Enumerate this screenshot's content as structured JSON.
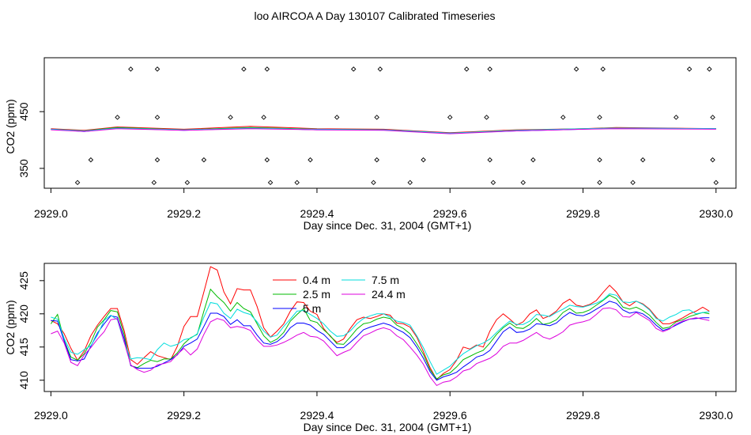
{
  "figure": {
    "title": "loo AIRCOA A  Day 130107  Calibrated Timeseries"
  },
  "chart_data": [
    {
      "type": "line",
      "panel": "top",
      "xlabel": "Day since Dec. 31, 2004 (GMT+1)",
      "ylabel": "CO2 (ppm)",
      "xlim": [
        2928.99,
        2930.03
      ],
      "ylim": [
        315,
        545
      ],
      "x_ticks": [
        {
          "v": 2929.0,
          "label": "2929.0"
        },
        {
          "v": 2929.2,
          "label": "2929.2"
        },
        {
          "v": 2929.4,
          "label": "2929.4"
        },
        {
          "v": 2929.6,
          "label": "2929.6"
        },
        {
          "v": 2929.8,
          "label": "2929.8"
        },
        {
          "v": 2930.0,
          "label": "2930.0"
        }
      ],
      "y_ticks": [
        {
          "v": 350,
          "label": "350"
        },
        {
          "v": 450,
          "label": "450"
        }
      ],
      "series": [
        {
          "color": "#ff0000",
          "x": [
            2929.0,
            2929.05,
            2929.1,
            2929.2,
            2929.3,
            2929.4,
            2929.5,
            2929.6,
            2929.7,
            2929.8,
            2929.85,
            2930.0
          ],
          "values": [
            420,
            417,
            423,
            419,
            424,
            420,
            419,
            413,
            418,
            420,
            422,
            420
          ]
        },
        {
          "color": "#00bb00",
          "x": [
            2929.0,
            2929.05,
            2929.1,
            2929.2,
            2929.3,
            2929.4,
            2929.5,
            2929.6,
            2929.7,
            2929.8,
            2929.85,
            2930.0
          ],
          "values": [
            419,
            416,
            422,
            418,
            422,
            419,
            418,
            412,
            417,
            420,
            421,
            420
          ]
        },
        {
          "color": "#0000ff",
          "x": [
            2929.0,
            2929.05,
            2929.1,
            2929.2,
            2929.3,
            2929.4,
            2929.5,
            2929.6,
            2929.7,
            2929.8,
            2929.85,
            2930.0
          ],
          "values": [
            419,
            415,
            421,
            417,
            421,
            418,
            418,
            412,
            416,
            419,
            421,
            420
          ]
        },
        {
          "color": "#00dddd",
          "x": [
            2929.0,
            2929.05,
            2929.1,
            2929.2,
            2929.3,
            2929.4,
            2929.5,
            2929.6,
            2929.7,
            2929.8,
            2929.85,
            2930.0
          ],
          "values": [
            419,
            416,
            421,
            418,
            421,
            419,
            418,
            412,
            417,
            420,
            421,
            420
          ]
        },
        {
          "color": "#dd00dd",
          "x": [
            2929.0,
            2929.05,
            2929.1,
            2929.2,
            2929.3,
            2929.4,
            2929.5,
            2929.6,
            2929.7,
            2929.8,
            2929.85,
            2930.0
          ],
          "values": [
            418,
            415,
            420,
            417,
            420,
            418,
            417,
            411,
            416,
            419,
            420,
            419
          ]
        }
      ],
      "markers": {
        "type": "scatter",
        "x": [
          2929.04,
          2929.06,
          2929.1,
          2929.12,
          2929.155,
          2929.16,
          2929.16,
          2929.16,
          2929.205,
          2929.23,
          2929.27,
          2929.29,
          2929.32,
          2929.325,
          2929.325,
          2929.33,
          2929.37,
          2929.39,
          2929.43,
          2929.455,
          2929.485,
          2929.49,
          2929.49,
          2929.495,
          2929.54,
          2929.56,
          2929.6,
          2929.625,
          2929.655,
          2929.66,
          2929.66,
          2929.665,
          2929.71,
          2929.725,
          2929.77,
          2929.79,
          2929.825,
          2929.825,
          2929.825,
          2929.83,
          2929.875,
          2929.89,
          2929.94,
          2929.96,
          2929.99,
          2929.995,
          2929.995,
          2930.0
        ],
        "y": [
          325,
          365,
          440,
          525,
          325,
          365,
          440,
          525,
          325,
          365,
          440,
          525,
          440,
          525,
          365,
          325,
          325,
          365,
          440,
          525,
          325,
          365,
          440,
          525,
          325,
          365,
          440,
          525,
          440,
          525,
          365,
          325,
          325,
          365,
          440,
          525,
          325,
          365,
          440,
          525,
          325,
          365,
          440,
          525,
          525,
          440,
          365,
          325
        ]
      }
    },
    {
      "type": "line",
      "panel": "bottom",
      "xlabel": "Day since Dec. 31, 2004 (GMT+1)",
      "ylabel": "CO2 (ppm)",
      "xlim": [
        2928.99,
        2930.03
      ],
      "ylim": [
        408.3,
        427.6
      ],
      "x_ticks": [
        {
          "v": 2929.0,
          "label": "2929.0"
        },
        {
          "v": 2929.2,
          "label": "2929.2"
        },
        {
          "v": 2929.4,
          "label": "2929.4"
        },
        {
          "v": 2929.6,
          "label": "2929.6"
        },
        {
          "v": 2929.8,
          "label": "2929.8"
        },
        {
          "v": 2930.0,
          "label": "2930.0"
        }
      ],
      "y_ticks": [
        {
          "v": 410,
          "label": "410"
        },
        {
          "v": 415,
          "label": "415"
        },
        {
          "v": 420,
          "label": "420"
        },
        {
          "v": 425,
          "label": "425"
        }
      ],
      "legend": {
        "position": "top-center",
        "entries": [
          {
            "label": "0.4 m",
            "color": "#ff0000"
          },
          {
            "label": "2.5 m",
            "color": "#00bb00"
          },
          {
            "label": "5 m",
            "color": "#0000ff"
          },
          {
            "label": "7.5 m",
            "color": "#00dddd"
          },
          {
            "label": "24.4 m",
            "color": "#dd00dd"
          }
        ]
      },
      "x": [
        2929.0,
        2929.01,
        2929.02,
        2929.03,
        2929.04,
        2929.05,
        2929.06,
        2929.07,
        2929.08,
        2929.09,
        2929.1,
        2929.11,
        2929.12,
        2929.13,
        2929.14,
        2929.15,
        2929.16,
        2929.17,
        2929.18,
        2929.19,
        2929.2,
        2929.21,
        2929.22,
        2929.23,
        2929.24,
        2929.25,
        2929.26,
        2929.27,
        2929.28,
        2929.29,
        2929.3,
        2929.31,
        2929.32,
        2929.33,
        2929.34,
        2929.35,
        2929.36,
        2929.37,
        2929.38,
        2929.39,
        2929.4,
        2929.41,
        2929.42,
        2929.43,
        2929.44,
        2929.45,
        2929.46,
        2929.47,
        2929.48,
        2929.49,
        2929.5,
        2929.51,
        2929.52,
        2929.53,
        2929.54,
        2929.55,
        2929.56,
        2929.57,
        2929.58,
        2929.59,
        2929.6,
        2929.61,
        2929.62,
        2929.63,
        2929.64,
        2929.65,
        2929.66,
        2929.67,
        2929.68,
        2929.69,
        2929.7,
        2929.71,
        2929.72,
        2929.73,
        2929.74,
        2929.75,
        2929.76,
        2929.77,
        2929.78,
        2929.79,
        2929.8,
        2929.81,
        2929.82,
        2929.83,
        2929.84,
        2929.85,
        2929.86,
        2929.87,
        2929.88,
        2929.89,
        2929.9,
        2929.91,
        2929.92,
        2929.93,
        2929.94,
        2929.95,
        2929.96,
        2929.97,
        2929.98,
        2929.99
      ],
      "series": [
        {
          "name": "0.4 m",
          "color": "#ff0000",
          "values": [
            419.0,
            418.5,
            417.0,
            414.8,
            413.0,
            414.4,
            416.7,
            418.3,
            419.6,
            420.8,
            420.8,
            417.5,
            413.1,
            412.4,
            413.4,
            414.3,
            413.7,
            413.4,
            413.1,
            415.1,
            418.1,
            419.6,
            419.6,
            423.3,
            427.1,
            426.6,
            423.3,
            421.5,
            423.8,
            423.6,
            423.6,
            421.1,
            417.9,
            416.5,
            417.4,
            418.5,
            420.4,
            421.8,
            421.7,
            420.4,
            419.9,
            417.8,
            416.6,
            415.7,
            416.2,
            417.8,
            419.1,
            419.5,
            419.3,
            419.6,
            420.0,
            419.8,
            418.6,
            418.5,
            418.0,
            416.5,
            414.3,
            411.9,
            410.1,
            411.0,
            411.6,
            413.0,
            415.0,
            414.7,
            415.3,
            415.0,
            417.4,
            419.1,
            420.0,
            419.2,
            418.3,
            418.8,
            420.0,
            420.6,
            419.3,
            419.7,
            420.4,
            421.6,
            422.2,
            421.3,
            421.1,
            421.4,
            422.0,
            423.2,
            424.3,
            423.3,
            421.8,
            421.2,
            421.9,
            421.5,
            420.7,
            419.5,
            418.5,
            418.5,
            418.9,
            419.4,
            420.0,
            420.4,
            421.0,
            420.4
          ]
        },
        {
          "name": "2.5 m",
          "color": "#00bb00",
          "values": [
            418.5,
            419.9,
            416.0,
            413.5,
            413.0,
            414.0,
            415.7,
            418.0,
            419.1,
            420.5,
            420.3,
            416.9,
            412.2,
            411.9,
            412.5,
            413.0,
            412.8,
            413.2,
            413.2,
            414.1,
            415.5,
            416.4,
            416.9,
            420.4,
            423.7,
            422.6,
            421.7,
            420.4,
            421.7,
            420.8,
            420.3,
            418.5,
            416.7,
            415.7,
            416.2,
            417.2,
            418.9,
            419.9,
            420.8,
            419.0,
            418.7,
            417.6,
            416.7,
            415.5,
            415.4,
            416.5,
            417.7,
            418.5,
            418.7,
            419.2,
            419.5,
            419.3,
            418.3,
            417.8,
            417.0,
            415.5,
            413.9,
            411.6,
            410.2,
            410.8,
            411.1,
            412.0,
            413.1,
            413.6,
            414.1,
            414.5,
            415.6,
            416.9,
            417.9,
            418.6,
            417.9,
            417.8,
            418.4,
            419.3,
            418.4,
            418.6,
            419.1,
            420.2,
            420.8,
            420.1,
            420.2,
            420.6,
            421.3,
            422.0,
            422.8,
            422.3,
            421.0,
            420.7,
            421.0,
            420.5,
            419.8,
            418.7,
            417.8,
            418.0,
            418.8,
            419.1,
            419.6,
            419.9,
            420.2,
            420.0
          ]
        },
        {
          "name": "5 m",
          "color": "#0000ff",
          "values": [
            419.0,
            418.9,
            415.9,
            413.1,
            412.9,
            413.2,
            415.1,
            417.1,
            418.5,
            419.7,
            419.5,
            416.3,
            412.2,
            411.8,
            411.8,
            411.8,
            412.1,
            412.6,
            413.1,
            413.8,
            415.1,
            415.6,
            416.2,
            418.1,
            420.1,
            420.1,
            419.6,
            418.4,
            419.1,
            418.2,
            418.2,
            416.8,
            415.6,
            415.4,
            415.8,
            416.6,
            417.9,
            418.6,
            418.6,
            418.3,
            417.5,
            416.9,
            415.9,
            414.9,
            414.9,
            415.7,
            416.6,
            417.6,
            418.0,
            418.3,
            418.6,
            418.3,
            417.7,
            417.2,
            416.4,
            415.0,
            413.3,
            411.3,
            410.0,
            410.5,
            410.8,
            411.2,
            412.0,
            412.7,
            413.5,
            413.8,
            414.5,
            415.9,
            417.3,
            418.0,
            417.2,
            417.3,
            417.7,
            418.5,
            418.4,
            418.2,
            418.6,
            419.5,
            420.2,
            419.8,
            419.7,
            420.1,
            420.7,
            421.3,
            421.9,
            421.6,
            420.6,
            420.1,
            420.3,
            420.0,
            419.3,
            418.3,
            417.5,
            417.8,
            418.3,
            418.8,
            419.2,
            419.3,
            419.4,
            419.4
          ]
        },
        {
          "name": "7.5 m",
          "color": "#00dddd",
          "values": [
            419.5,
            419.2,
            416.3,
            414.2,
            413.9,
            414.6,
            415.2,
            416.8,
            419.0,
            419.8,
            419.1,
            415.7,
            413.2,
            413.4,
            413.3,
            413.1,
            414.6,
            415.6,
            415.1,
            415.4,
            416.1,
            416.3,
            417.0,
            419.5,
            421.7,
            421.5,
            420.1,
            419.3,
            420.7,
            420.2,
            419.9,
            418.8,
            417.4,
            416.5,
            416.8,
            418.1,
            419.2,
            420.4,
            420.5,
            419.9,
            419.3,
            418.5,
            417.4,
            416.6,
            416.7,
            417.4,
            418.5,
            419.3,
            419.7,
            420.0,
            420.0,
            419.5,
            418.9,
            418.7,
            418.3,
            416.7,
            414.9,
            412.8,
            410.9,
            411.5,
            412.1,
            413.1,
            414.0,
            414.6,
            415.2,
            415.6,
            416.2,
            417.2,
            418.1,
            418.9,
            418.4,
            418.4,
            418.9,
            419.9,
            419.8,
            419.6,
            420.2,
            420.7,
            421.3,
            421.1,
            421.0,
            421.3,
            421.6,
            422.1,
            423.0,
            422.8,
            421.8,
            421.7,
            421.9,
            421.4,
            420.6,
            419.3,
            418.9,
            419.5,
            419.9,
            420.5,
            420.6,
            420.0,
            420.2,
            420.3
          ]
        },
        {
          "name": "24.4 m",
          "color": "#dd00dd",
          "values": [
            417.0,
            417.4,
            415.6,
            412.7,
            412.2,
            413.8,
            414.9,
            416.2,
            417.3,
            419.1,
            419.3,
            415.8,
            412.3,
            411.6,
            411.2,
            411.5,
            412.3,
            412.5,
            412.8,
            413.9,
            414.8,
            413.8,
            414.7,
            416.9,
            418.8,
            419.3,
            419.0,
            417.9,
            418.1,
            417.9,
            417.5,
            416.1,
            415.1,
            415.1,
            415.3,
            415.7,
            416.2,
            416.8,
            417.2,
            416.6,
            416.5,
            415.9,
            414.8,
            413.7,
            414.2,
            414.6,
            415.7,
            416.7,
            417.1,
            417.6,
            417.9,
            417.6,
            416.7,
            416.1,
            415.0,
            413.8,
            412.4,
            410.5,
            409.2,
            409.7,
            409.9,
            410.5,
            411.4,
            411.7,
            412.5,
            412.9,
            413.3,
            414.0,
            415.1,
            415.6,
            415.6,
            416.0,
            416.6,
            417.2,
            416.5,
            416.2,
            416.7,
            417.3,
            418.3,
            418.6,
            418.8,
            419.1,
            419.9,
            420.8,
            420.9,
            420.6,
            419.6,
            419.5,
            420.2,
            419.6,
            419.0,
            417.8,
            417.3,
            417.7,
            418.5,
            418.9,
            419.2,
            419.4,
            419.2,
            419.0
          ]
        }
      ]
    }
  ]
}
